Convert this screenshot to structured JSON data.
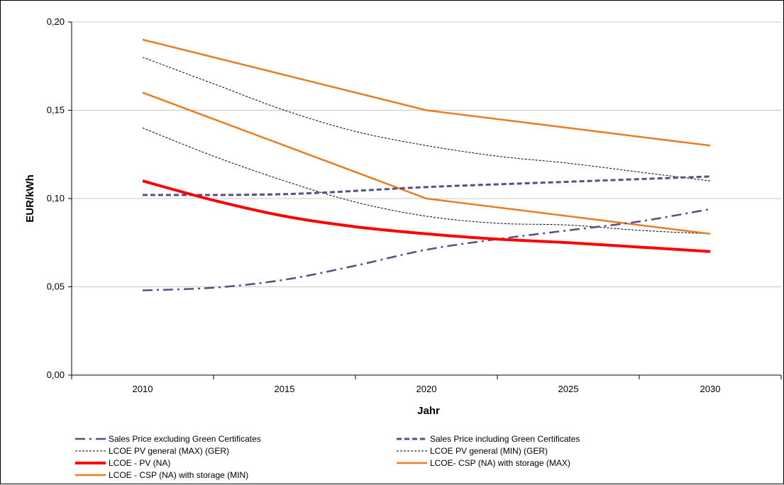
{
  "chart_data": {
    "type": "line",
    "xlabel": "Jahr",
    "ylabel": "EUR/kWh",
    "x_ticks": [
      "2010",
      "2015",
      "2020",
      "2025",
      "2030"
    ],
    "y_ticks": [
      "0,00",
      "0,05",
      "0,10",
      "0,15",
      "0,20"
    ],
    "xlim": [
      2007.5,
      2032.5
    ],
    "ylim": [
      0,
      0.2
    ],
    "grid": "horizontal",
    "legend_position": "bottom",
    "series": [
      {
        "name": "Sales Price excluding Green Certificates",
        "color": "#5e4b86",
        "style": "dash-dot",
        "x": [
          2010,
          2012.5,
          2015,
          2017.5,
          2020,
          2022.5,
          2025,
          2027.5,
          2030
        ],
        "y": [
          0.048,
          0.0495,
          0.054,
          0.062,
          0.071,
          0.077,
          0.082,
          0.087,
          0.094
        ]
      },
      {
        "name": "Sales Price including Green Certificates",
        "color": "#5e4b86",
        "style": "dash",
        "x": [
          2010,
          2015,
          2020,
          2025,
          2030
        ],
        "y": [
          0.102,
          0.1025,
          0.1065,
          0.1095,
          0.1125
        ]
      },
      {
        "name": "LCOE PV general (MAX) (GER)",
        "color": "#000000",
        "style": "fine-dash",
        "x": [
          2010,
          2012.5,
          2015,
          2017.5,
          2020,
          2022.5,
          2025,
          2027.5,
          2030
        ],
        "y": [
          0.18,
          0.165,
          0.15,
          0.138,
          0.13,
          0.124,
          0.12,
          0.115,
          0.11
        ]
      },
      {
        "name": "LCOE PV general (MIN) (GER)",
        "color": "#000000",
        "style": "fine-dash",
        "x": [
          2010,
          2012.5,
          2015,
          2017.5,
          2020,
          2022.5,
          2025,
          2027.5,
          2030
        ],
        "y": [
          0.14,
          0.124,
          0.11,
          0.098,
          0.09,
          0.086,
          0.085,
          0.082,
          0.08
        ]
      },
      {
        "name": "LCOE - PV (NA)",
        "color": "#ff0000",
        "style": "thick",
        "x": [
          2010,
          2012.5,
          2015,
          2017.5,
          2020,
          2022.5,
          2025,
          2027.5,
          2030
        ],
        "y": [
          0.11,
          0.099,
          0.09,
          0.084,
          0.08,
          0.077,
          0.075,
          0.0725,
          0.07
        ]
      },
      {
        "name": "LCOE- CSP (NA) with storage (MAX)",
        "color": "#e67e22",
        "style": "solid",
        "x": [
          2010,
          2020,
          2030
        ],
        "y": [
          0.19,
          0.15,
          0.13
        ]
      },
      {
        "name": "LCOE - CSP (NA) with storage (MIN)",
        "color": "#e67e22",
        "style": "solid",
        "x": [
          2010,
          2020,
          2030
        ],
        "y": [
          0.16,
          0.1,
          0.08
        ]
      }
    ]
  }
}
